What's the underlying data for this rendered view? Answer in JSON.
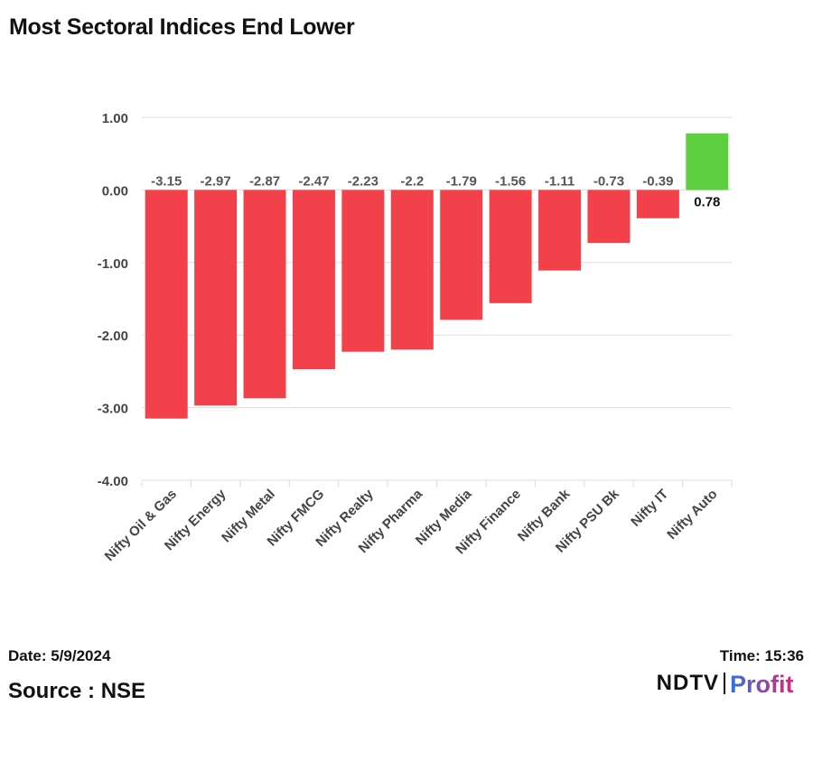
{
  "title": "Most Sectoral Indices End Lower",
  "footer": {
    "date": "Date: 5/9/2024",
    "time": "Time: 15:36",
    "source": "Source : NSE"
  },
  "brand": {
    "ndtv": "NDTV",
    "profit_gradient_start": "#2f73d9",
    "profit_gradient_end": "#e0227a"
  },
  "colors": {
    "negative": "#f2414b",
    "positive": "#5ecf3f",
    "grid": "#dddddd",
    "axis_text": "#444444",
    "label_negative": "#555555",
    "label_positive": "#111111"
  },
  "chart_data": {
    "type": "bar",
    "title": "Most Sectoral Indices End Lower",
    "xlabel": "",
    "ylabel": "",
    "categories": [
      "Nifty Oil & Gas",
      "Nifty Energy",
      "Nifty Metal",
      "Nifty FMCG",
      "Nifty Realty",
      "Nifty Pharma",
      "Nifty Media",
      "Nifty Finance",
      "Nifty Bank",
      "Nifty PSU Bk",
      "Nifty IT",
      "Nifty Auto"
    ],
    "values": [
      -3.15,
      -2.97,
      -2.87,
      -2.47,
      -2.23,
      -2.2,
      -1.79,
      -1.56,
      -1.11,
      -0.73,
      -0.39,
      0.78
    ],
    "value_labels": [
      "-3.15",
      "-2.97",
      "-2.87",
      "-2.47",
      "-2.23",
      "-2.2",
      "-1.79",
      "-1.56",
      "-1.11",
      "-0.73",
      "-0.39",
      "0.78"
    ],
    "ylim": [
      -4,
      1
    ],
    "yticks": [
      1,
      0,
      -1,
      -2,
      -3,
      -4
    ],
    "ytick_labels": [
      "1.00",
      "0.00",
      "-1.00",
      "-2.00",
      "-3.00",
      "-4.00"
    ],
    "grid": true,
    "legend": "none"
  }
}
